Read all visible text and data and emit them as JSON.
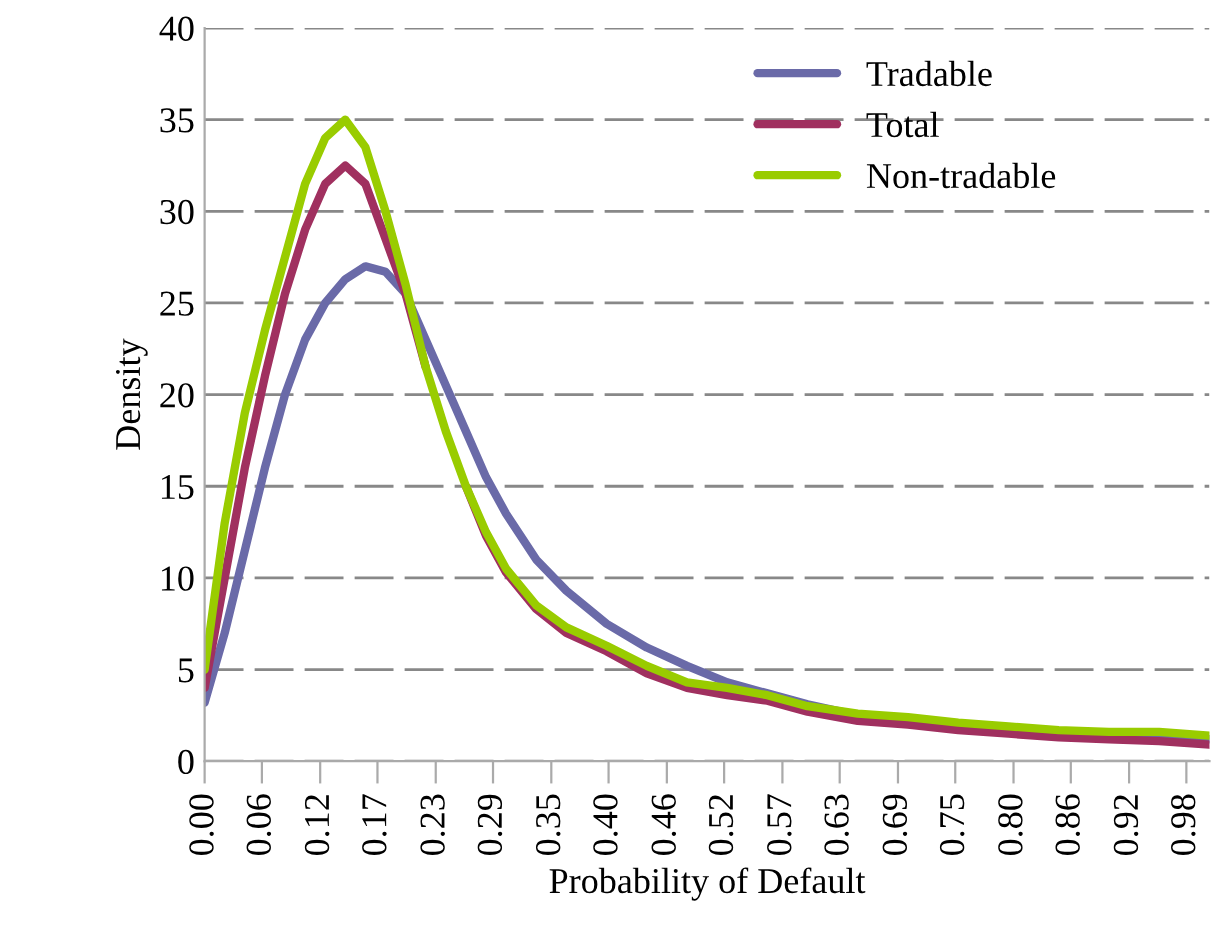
{
  "chart_data": {
    "type": "line",
    "xlabel": "Probability of Default",
    "ylabel": "Density",
    "x": [
      0,
      0.02,
      0.04,
      0.06,
      0.08,
      0.1,
      0.12,
      0.14,
      0.16,
      0.18,
      0.2,
      0.22,
      0.24,
      0.26,
      0.28,
      0.3,
      0.33,
      0.36,
      0.4,
      0.44,
      0.48,
      0.52,
      0.56,
      0.6,
      0.65,
      0.7,
      0.75,
      0.8,
      0.85,
      0.9,
      0.95,
      1.0
    ],
    "series": [
      {
        "name": "Tradable",
        "color": "#6a6aa8",
        "values": [
          3.2,
          7,
          11.5,
          16,
          20,
          23,
          25,
          26.3,
          27,
          26.7,
          25.5,
          23,
          20.5,
          18,
          15.5,
          13.5,
          11,
          9.3,
          7.5,
          6.2,
          5.2,
          4.3,
          3.7,
          3.1,
          2.5,
          2.2,
          1.9,
          1.7,
          1.5,
          1.4,
          1.3,
          1.2
        ]
      },
      {
        "name": "Total",
        "color": "#a0305f",
        "values": [
          4,
          10,
          16,
          21,
          25.5,
          29,
          31.5,
          32.5,
          31.5,
          28.5,
          25.5,
          21.5,
          null,
          15,
          12.3,
          10.3,
          8.3,
          7,
          6,
          4.8,
          4,
          3.6,
          3.3,
          2.7,
          2.2,
          2,
          1.7,
          1.5,
          1.3,
          1.2,
          1.1,
          0.9
        ]
      },
      {
        "name": "Non-tradable",
        "color": "#99cc00",
        "values": [
          5,
          13,
          19,
          23.5,
          27.5,
          31.5,
          34,
          35,
          33.5,
          30,
          26,
          21.5,
          18,
          15,
          12.5,
          10.5,
          8.5,
          7.3,
          6.3,
          5.2,
          4.3,
          4,
          3.6,
          3,
          2.6,
          2.4,
          2.1,
          1.9,
          1.7,
          1.6,
          1.6,
          1.4
        ]
      }
    ],
    "xlim": [
      0,
      1
    ],
    "xticks": [
      {
        "value": 0,
        "label": "0.00"
      },
      {
        "value": 0.057,
        "label": "0.06"
      },
      {
        "value": 0.115,
        "label": "0.12"
      },
      {
        "value": 0.172,
        "label": "0.17"
      },
      {
        "value": 0.23,
        "label": "0.23"
      },
      {
        "value": 0.287,
        "label": "0.29"
      },
      {
        "value": 0.345,
        "label": "0.35"
      },
      {
        "value": 0.402,
        "label": "0.40"
      },
      {
        "value": 0.46,
        "label": "0.46"
      },
      {
        "value": 0.517,
        "label": "0.52"
      },
      {
        "value": 0.575,
        "label": "0.57"
      },
      {
        "value": 0.632,
        "label": "0.63"
      },
      {
        "value": 0.69,
        "label": "0.69"
      },
      {
        "value": 0.747,
        "label": "0.75"
      },
      {
        "value": 0.805,
        "label": "0.80"
      },
      {
        "value": 0.862,
        "label": "0.86"
      },
      {
        "value": 0.92,
        "label": "0.92"
      },
      {
        "value": 0.977,
        "label": "0.98"
      }
    ],
    "ylim": [
      0,
      40
    ],
    "yticks": [
      0,
      5,
      10,
      15,
      20,
      25,
      30,
      35,
      40
    ],
    "grid": "y",
    "legend": "top right"
  }
}
